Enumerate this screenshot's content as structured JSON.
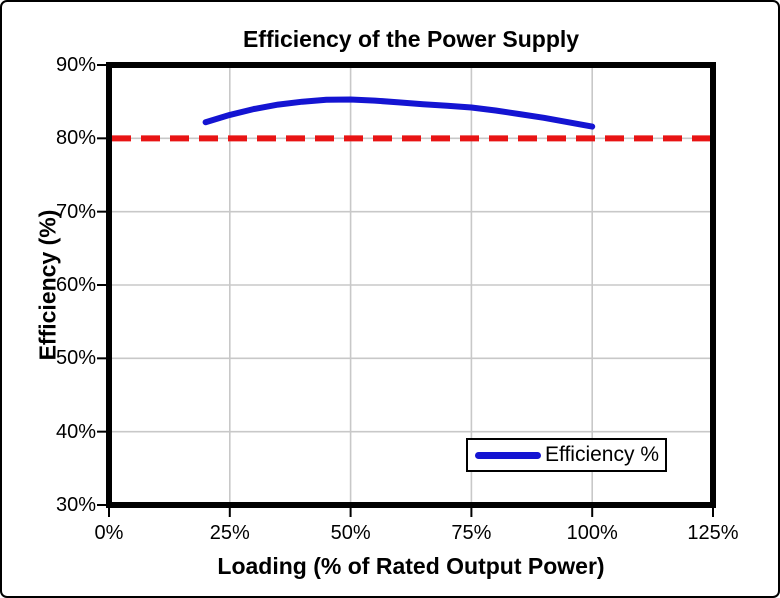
{
  "figure": {
    "title": "Efficiency of the Power Supply"
  },
  "chart_data": {
    "type": "line",
    "title": "Efficiency of the Power Supply",
    "xlabel": "Loading (% of Rated Output Power)",
    "ylabel": "Efficiency (%)",
    "xlim": [
      0,
      125
    ],
    "ylim": [
      30,
      90
    ],
    "x_ticks": [
      0,
      25,
      50,
      75,
      100,
      125
    ],
    "x_tick_labels": [
      "0%",
      "25%",
      "50%",
      "75%",
      "100%",
      "125%"
    ],
    "y_ticks": [
      30,
      40,
      50,
      60,
      70,
      80,
      90
    ],
    "y_tick_labels": [
      "30%",
      "40%",
      "50%",
      "60%",
      "70%",
      "80%",
      "90%"
    ],
    "grid": true,
    "grid_color": "#c8c8c8",
    "series": [
      {
        "name": "Efficiency %",
        "color": "#1414d2",
        "style": "solid-smooth",
        "points": [
          [
            20,
            82.2
          ],
          [
            25,
            83.2
          ],
          [
            30,
            84.0
          ],
          [
            35,
            84.6
          ],
          [
            40,
            85.0
          ],
          [
            45,
            85.25
          ],
          [
            50,
            85.3
          ],
          [
            55,
            85.15
          ],
          [
            60,
            84.9
          ],
          [
            65,
            84.65
          ],
          [
            70,
            84.45
          ],
          [
            75,
            84.2
          ],
          [
            80,
            83.8
          ],
          [
            85,
            83.3
          ],
          [
            90,
            82.8
          ],
          [
            95,
            82.2
          ],
          [
            100,
            81.6
          ]
        ]
      }
    ],
    "reference_line": {
      "y": 80,
      "color": "#e81414",
      "style": "dashed"
    },
    "legend": {
      "position": "bottom-right-inside",
      "entries": [
        {
          "label": "Efficiency %",
          "color": "#1414d2"
        }
      ]
    }
  }
}
